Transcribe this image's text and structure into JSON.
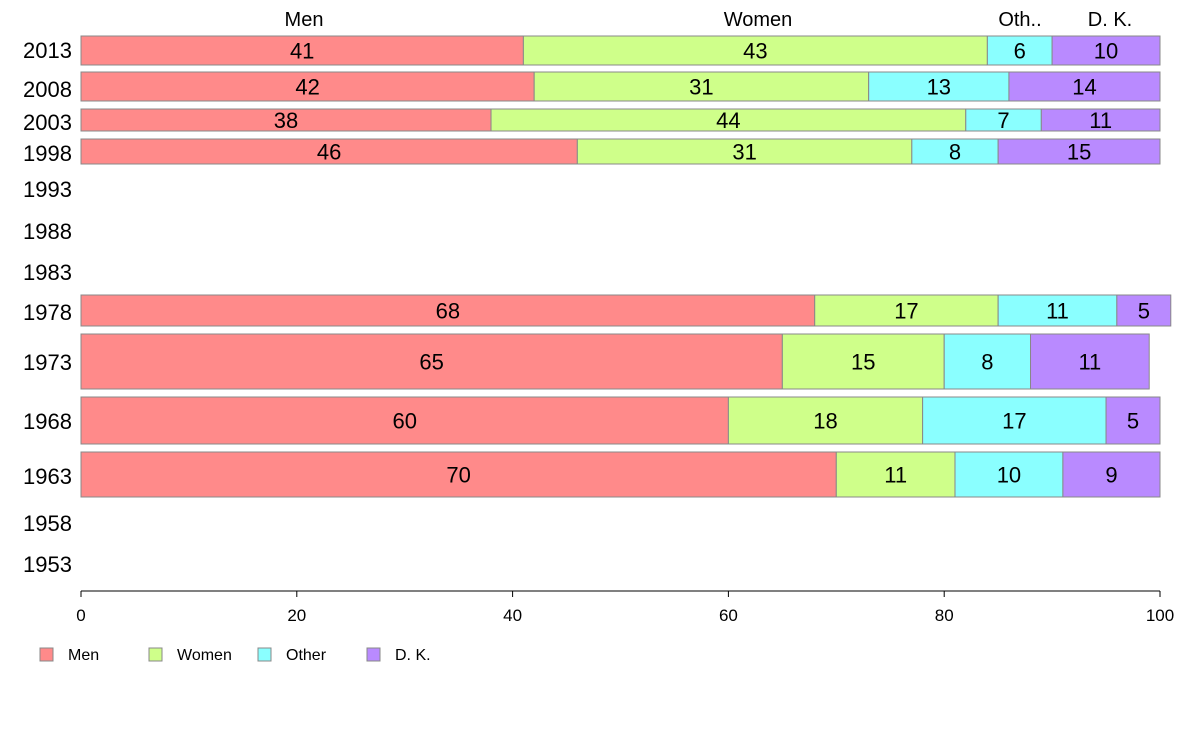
{
  "chart_data": {
    "type": "bar",
    "orientation": "horizontal",
    "stacked": true,
    "normalized": true,
    "categories": [
      "2013",
      "2008",
      "2003",
      "1998",
      "1993",
      "1988",
      "1983",
      "1978",
      "1973",
      "1968",
      "1963",
      "1958",
      "1953"
    ],
    "series": [
      {
        "name": "Men",
        "color": "#ff8a8a",
        "values": [
          41,
          42,
          38,
          46,
          null,
          null,
          null,
          68,
          65,
          60,
          70,
          null,
          null
        ]
      },
      {
        "name": "Women",
        "color": "#cfff8a",
        "values": [
          43,
          31,
          44,
          31,
          null,
          null,
          null,
          17,
          15,
          18,
          11,
          null,
          null
        ]
      },
      {
        "name": "Other",
        "color": "#8affff",
        "values": [
          6,
          13,
          7,
          8,
          null,
          null,
          null,
          11,
          8,
          17,
          10,
          null,
          null
        ]
      },
      {
        "name": "D. K.",
        "color": "#b98aff",
        "values": [
          10,
          14,
          11,
          15,
          null,
          null,
          null,
          5,
          11,
          5,
          9,
          null,
          null
        ]
      }
    ],
    "top_labels": [
      "Men",
      "Women",
      "Oth..",
      "D. K."
    ],
    "xlim": [
      0,
      100
    ],
    "xticks": [
      "0",
      "20",
      "40",
      "60",
      "80",
      "100"
    ],
    "legend_position": "bottom-left",
    "grid": false
  }
}
